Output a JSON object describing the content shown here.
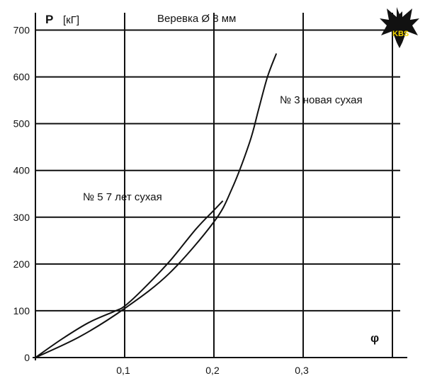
{
  "chart_data": {
    "type": "line",
    "title": "Веревка  Ø 8 мм",
    "ylabel": "P",
    "yunit": "[кГ]",
    "xlabel": "φ",
    "xlim": [
      0,
      0.4
    ],
    "ylim": [
      0,
      700
    ],
    "xticks": [
      "0,1",
      "0,2",
      "0,3"
    ],
    "yticks": [
      "0",
      "100",
      "200",
      "300",
      "400",
      "500",
      "600",
      "700"
    ],
    "grid": true,
    "series": [
      {
        "name": "№ 3 новая сухая",
        "x": [
          0,
          0.05,
          0.1,
          0.15,
          0.2,
          0.22,
          0.24,
          0.25,
          0.26,
          0.27
        ],
        "y": [
          0,
          45,
          105,
          180,
          290,
          360,
          460,
          530,
          600,
          650
        ]
      },
      {
        "name": "№ 5  7 лет сухая",
        "x": [
          0,
          0.03,
          0.06,
          0.09,
          0.1,
          0.12,
          0.15,
          0.18,
          0.2,
          0.21
        ],
        "y": [
          0,
          40,
          75,
          100,
          110,
          145,
          205,
          275,
          315,
          335
        ]
      }
    ]
  },
  "logo": {
    "text": "KBS",
    "icon": "bat-icon",
    "accent": "#f5d800"
  }
}
